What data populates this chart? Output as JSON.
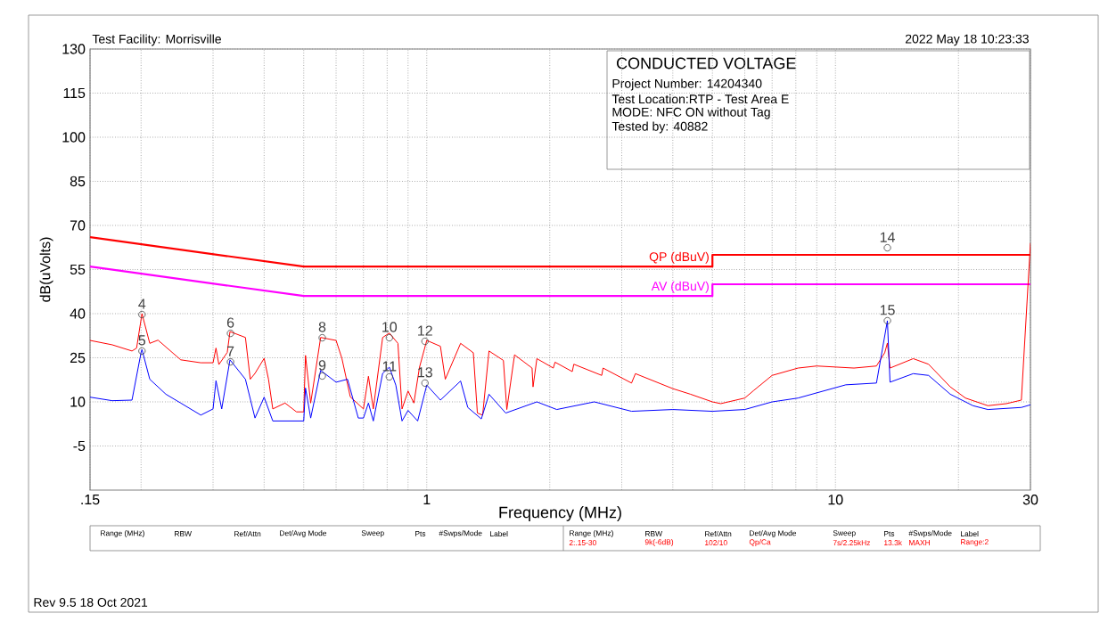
{
  "chart_data": {
    "type": "line",
    "title": "CONDUCTED VOLTAGE",
    "xlabel": "Frequency (MHz)",
    "ylabel": "dB(uVolts)",
    "log": "x",
    "grid": true,
    "xlim": [
      0.15,
      30
    ],
    "ylim": [
      -20,
      130
    ],
    "xticks": [
      {
        "value": 0.15,
        "label": ".15"
      },
      {
        "value": 0.2,
        "label": null
      },
      {
        "value": 0.3,
        "label": null
      },
      {
        "value": 0.4,
        "label": null
      },
      {
        "value": 0.5,
        "label": null
      },
      {
        "value": 0.6,
        "label": null
      },
      {
        "value": 0.7,
        "label": null
      },
      {
        "value": 0.8,
        "label": null
      },
      {
        "value": 0.9,
        "label": null
      },
      1,
      {
        "value": 2,
        "label": null
      },
      {
        "value": 3,
        "label": null
      },
      {
        "value": 4,
        "label": null
      },
      {
        "value": 5,
        "label": null
      },
      {
        "value": 6,
        "label": null
      },
      {
        "value": 7,
        "label": null
      },
      {
        "value": 8,
        "label": null
      },
      {
        "value": 9,
        "label": null
      },
      10,
      {
        "value": 20,
        "label": null
      },
      30
    ],
    "yticks": [
      -5,
      10,
      25,
      40,
      55,
      70,
      85,
      100,
      115,
      130
    ],
    "series": [
      {
        "name": "QP (dBuV)",
        "color": "#ff0000",
        "x": [
          0.15,
          0.5,
          5,
          5,
          30
        ],
        "values": [
          66,
          56,
          56,
          60,
          60
        ]
      },
      {
        "name": "AV (dBuV)",
        "color": "#ff00ff",
        "x": [
          0.15,
          0.5,
          5,
          5,
          30
        ],
        "values": [
          56,
          46,
          46,
          50,
          50
        ]
      },
      {
        "color": "#ff0000",
        "x": [
          0.15,
          0.17,
          0.19,
          0.195,
          0.201,
          0.21,
          0.22,
          0.25,
          0.28,
          0.3,
          0.305,
          0.31,
          0.325,
          0.33,
          0.36,
          0.37,
          0.38,
          0.4,
          0.41,
          0.42,
          0.45,
          0.48,
          0.5,
          0.505,
          0.52,
          0.55,
          0.6,
          0.62,
          0.65,
          0.7,
          0.72,
          0.74,
          0.78,
          0.81,
          0.85,
          0.87,
          0.9,
          0.93,
          0.96,
          1.0,
          1.08,
          1.11,
          1.21,
          1.3,
          1.33,
          1.37,
          1.42,
          1.54,
          1.57,
          1.64,
          1.81,
          1.82,
          1.86,
          2.04,
          2.06,
          2.27,
          2.29,
          2.68,
          2.7,
          3.17,
          3.24,
          4.0,
          4.42,
          5.0,
          5.24,
          6.0,
          6.3,
          7.0,
          8.1,
          9.0,
          11.1,
          12.6,
          13.2,
          13.4,
          13.6,
          15.5,
          16.9,
          19.1,
          20.8,
          23.6,
          26.2,
          28.5,
          30
        ],
        "values": [
          30.9,
          29.4,
          27.3,
          28.3,
          40,
          29.9,
          31,
          24.3,
          23.3,
          23.3,
          28.3,
          22.7,
          26.8,
          33.9,
          31.9,
          17.7,
          19.7,
          24.8,
          17.7,
          7.6,
          9.6,
          6.6,
          6.6,
          25.8,
          9.6,
          31.9,
          30.9,
          24.8,
          11.7,
          7.6,
          18.7,
          7.6,
          31.9,
          33.4,
          29.9,
          7.6,
          13.7,
          9.6,
          21.8,
          30.9,
          28.9,
          17.7,
          29.9,
          26.7,
          6.2,
          5.5,
          27.3,
          24.1,
          7.4,
          26.0,
          21.5,
          15.1,
          24.7,
          21.5,
          23.5,
          20.3,
          22.8,
          19.0,
          21.5,
          16.4,
          19.6,
          14.5,
          12.6,
          10.0,
          9.4,
          11.3,
          13.8,
          19.0,
          21.5,
          22.2,
          21.5,
          22.2,
          26.7,
          30,
          21.5,
          24.7,
          22.8,
          15.1,
          11.3,
          8.7,
          9.4,
          10.6,
          64
        ]
      },
      {
        "color": "#0000ff",
        "x": [
          0.15,
          0.17,
          0.19,
          0.2,
          0.201,
          0.21,
          0.23,
          0.25,
          0.28,
          0.3,
          0.305,
          0.315,
          0.33,
          0.36,
          0.38,
          0.4,
          0.42,
          0.5,
          0.505,
          0.52,
          0.55,
          0.6,
          0.64,
          0.68,
          0.7,
          0.72,
          0.74,
          0.78,
          0.81,
          0.84,
          0.87,
          0.9,
          0.95,
          1.0,
          1.08,
          1.21,
          1.26,
          1.36,
          1.42,
          1.56,
          1.86,
          2.08,
          2.57,
          3.17,
          4.0,
          5.0,
          6.0,
          7.0,
          8.1,
          10.6,
          12.6,
          13.4,
          13.6,
          15.5,
          16.9,
          19.1,
          21.7,
          23.6,
          28.5,
          30
        ],
        "values": [
          11.6,
          10.4,
          10.6,
          26.8,
          27.8,
          17.7,
          12.6,
          9.6,
          5.5,
          7.6,
          17.2,
          7.6,
          24.3,
          17.7,
          4.5,
          11.6,
          3.5,
          3.5,
          14.7,
          4.5,
          20.7,
          16.7,
          17.7,
          4.5,
          4.5,
          9.6,
          3.5,
          19.7,
          21.8,
          15.7,
          3.5,
          7.1,
          3.5,
          15.7,
          10.6,
          17.1,
          8.1,
          4.2,
          12.6,
          6.2,
          10.0,
          7.4,
          10.0,
          6.8,
          7.4,
          6.8,
          7.4,
          10.0,
          11.3,
          15.8,
          16.4,
          37.6,
          16.7,
          19.6,
          19.0,
          12.6,
          8.7,
          7.4,
          8.1,
          9
        ]
      }
    ],
    "annotations": [
      "Test Facility: Morrisville",
      "2022 May 18   10:23:33",
      "Project Number: 14204340",
      "Test Location:RTP - Test Area E",
      "MODE: NFC ON without Tag",
      "Tested by: 40882",
      "Rev 9.5 18 Oct 2021",
      "Range (MHz)",
      "RBW",
      "Ref/Attn",
      "Det/Avg Mode",
      "Sweep",
      "Pts",
      "#Swps/Mode",
      "Label",
      "Range (MHz)",
      "RBW",
      "Ref/Attn",
      "Det/Avg Mode",
      "Sweep",
      "Pts",
      "#Swps/Mode",
      "Label",
      "2:.15-30",
      "9k(-6dB)",
      "102/10",
      "Qp/Ca",
      "7s/2.25kHz",
      "13.3k",
      "MAXH",
      "Range:2",
      {
        "text": "4",
        "x": 0.201,
        "y": 39.7
      },
      {
        "text": "5",
        "x": 0.201,
        "y": 27.3
      },
      {
        "text": "6",
        "x": 0.331,
        "y": 33.3
      },
      {
        "text": "7",
        "x": 0.331,
        "y": 23.6
      },
      {
        "text": "8",
        "x": 0.555,
        "y": 31.8
      },
      {
        "text": "9",
        "x": 0.555,
        "y": 18.8
      },
      {
        "text": "10",
        "x": 0.81,
        "y": 31.8
      },
      {
        "text": "11",
        "x": 0.81,
        "y": 18.5
      },
      {
        "text": "12",
        "x": 0.99,
        "y": 30.6
      },
      {
        "text": "13",
        "x": 0.99,
        "y": 16.4
      },
      {
        "text": "14",
        "x": 13.4,
        "y": 62.4
      },
      {
        "text": "15",
        "x": 13.4,
        "y": 37.6
      }
    ]
  }
}
